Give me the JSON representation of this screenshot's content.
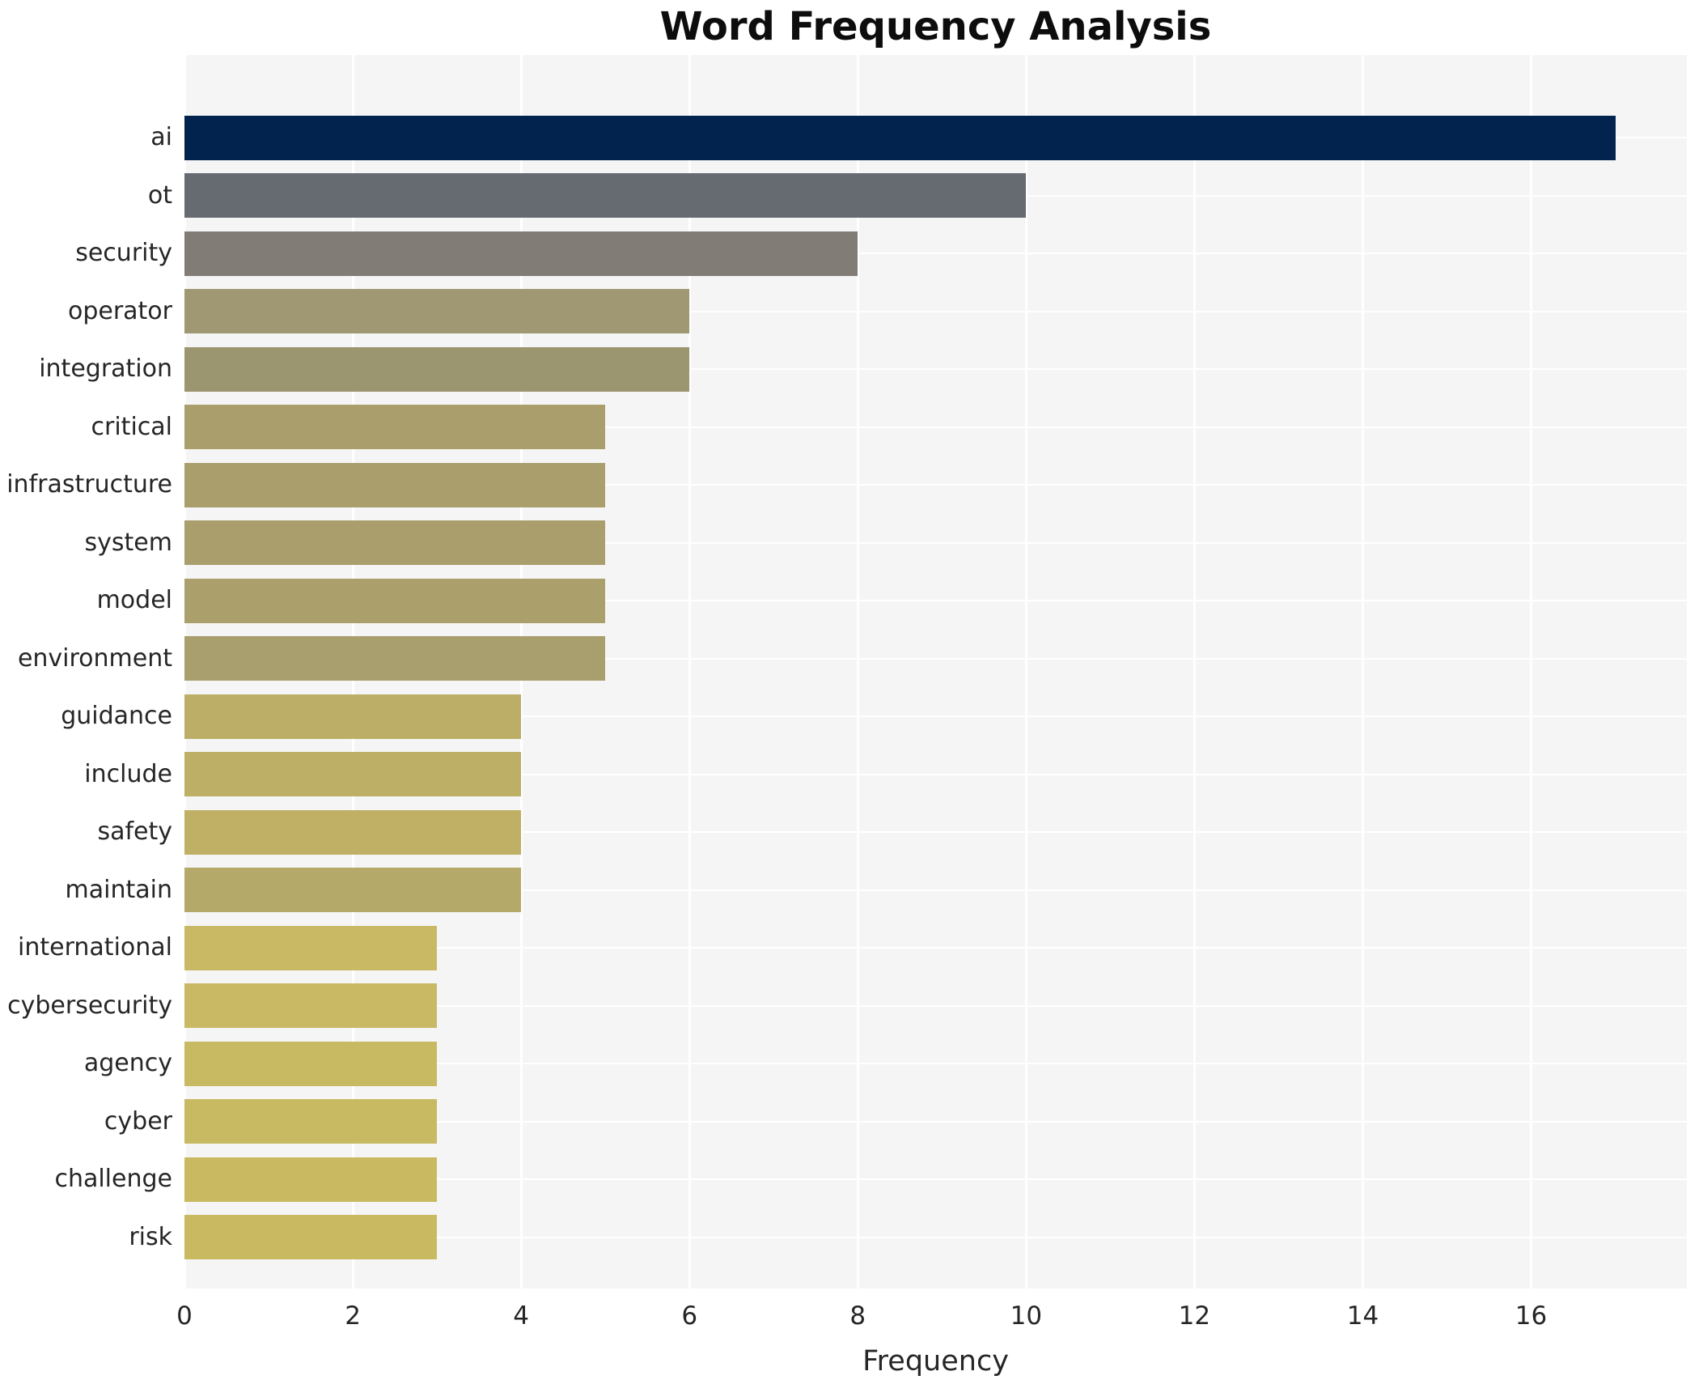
{
  "chart_data": {
    "type": "bar",
    "orientation": "horizontal",
    "title": "Word Frequency Analysis",
    "xlabel": "Frequency",
    "ylabel": "",
    "categories": [
      "ai",
      "ot",
      "security",
      "operator",
      "integration",
      "critical",
      "infrastructure",
      "system",
      "model",
      "environment",
      "guidance",
      "include",
      "safety",
      "maintain",
      "international",
      "cybersecurity",
      "agency",
      "cyber",
      "challenge",
      "risk"
    ],
    "values": [
      17,
      10,
      8,
      6,
      6,
      5,
      5,
      5,
      5,
      5,
      4,
      4,
      4,
      4,
      3,
      3,
      3,
      3,
      3,
      3
    ],
    "bar_colors": [
      "#02234d",
      "#666a71",
      "#817d76",
      "#9f9873",
      "#9c9670",
      "#aa9f6c",
      "#aa9f6c",
      "#aa9f6c",
      "#aba06b",
      "#a99e6d",
      "#bcae67",
      "#bdaf66",
      "#bfb066",
      "#b5a96a",
      "#c9b964",
      "#c9b964",
      "#c8b963",
      "#c8b963",
      "#c9ba62",
      "#c9ba62"
    ],
    "xticks": [
      0,
      2,
      4,
      6,
      8,
      10,
      12,
      14,
      16
    ],
    "xlim": [
      0,
      17.85
    ],
    "grid": "white vertical gridlines at x ticks and white horizontal gridlines at category centers on light gray panel",
    "legend": "none",
    "panel_bg": "#f5f5f6",
    "text_color": "#262626",
    "title_color": "#0d0d0d"
  }
}
